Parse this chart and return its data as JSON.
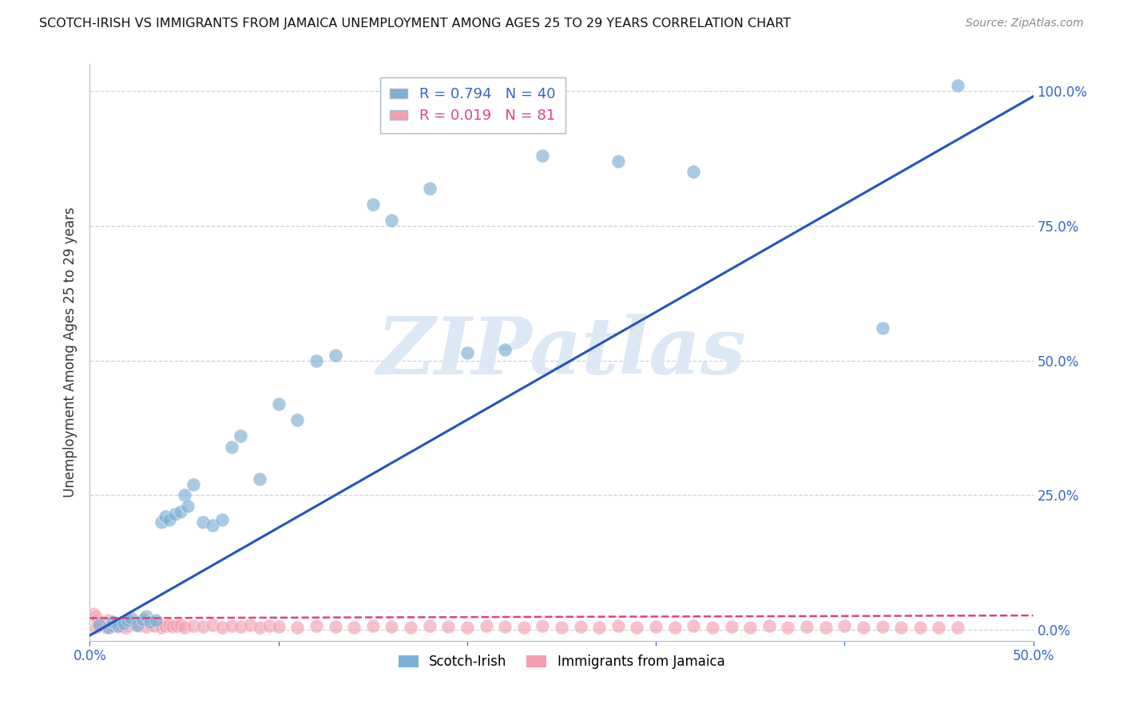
{
  "title": "SCOTCH-IRISH VS IMMIGRANTS FROM JAMAICA UNEMPLOYMENT AMONG AGES 25 TO 29 YEARS CORRELATION CHART",
  "source": "Source: ZipAtlas.com",
  "ylabel": "Unemployment Among Ages 25 to 29 years",
  "xlabel": "",
  "xmin": 0.0,
  "xmax": 0.5,
  "ymin": -0.02,
  "ymax": 1.05,
  "xticks": [
    0.0,
    0.1,
    0.2,
    0.3,
    0.4,
    0.5
  ],
  "ytick_vals": [
    0.0,
    0.25,
    0.5,
    0.75,
    1.0
  ],
  "ytick_labels_right": [
    "0.0%",
    "25.0%",
    "50.0%",
    "75.0%",
    "100.0%"
  ],
  "xtick_labels": [
    "0.0%",
    "",
    "",
    "",
    "",
    "50.0%"
  ],
  "scotch_irish_color": "#7ab0d4",
  "jamaica_color": "#f4a0b0",
  "scotch_irish_R": 0.794,
  "scotch_irish_N": 40,
  "jamaica_R": 0.019,
  "jamaica_N": 81,
  "regression_blue": "#2255bb",
  "regression_pink": "#dd4477",
  "watermark": "ZIPatlas",
  "watermark_color": "#dce8f5",
  "scotch_irish_x": [
    0.005,
    0.01,
    0.012,
    0.015,
    0.018,
    0.02,
    0.022,
    0.025,
    0.028,
    0.03,
    0.032,
    0.035,
    0.038,
    0.04,
    0.042,
    0.045,
    0.048,
    0.05,
    0.052,
    0.055,
    0.06,
    0.065,
    0.07,
    0.075,
    0.08,
    0.09,
    0.1,
    0.11,
    0.12,
    0.13,
    0.15,
    0.16,
    0.18,
    0.2,
    0.22,
    0.24,
    0.28,
    0.32,
    0.42,
    0.46
  ],
  "scotch_irish_y": [
    0.01,
    0.005,
    0.015,
    0.008,
    0.012,
    0.018,
    0.022,
    0.01,
    0.02,
    0.025,
    0.015,
    0.018,
    0.2,
    0.21,
    0.205,
    0.215,
    0.22,
    0.25,
    0.23,
    0.27,
    0.2,
    0.195,
    0.205,
    0.34,
    0.36,
    0.28,
    0.42,
    0.39,
    0.5,
    0.51,
    0.79,
    0.76,
    0.82,
    0.515,
    0.52,
    0.88,
    0.87,
    0.85,
    0.56,
    1.01
  ],
  "jamaica_x": [
    0.002,
    0.003,
    0.004,
    0.005,
    0.006,
    0.007,
    0.008,
    0.009,
    0.01,
    0.011,
    0.012,
    0.013,
    0.014,
    0.015,
    0.016,
    0.017,
    0.018,
    0.019,
    0.02,
    0.022,
    0.024,
    0.026,
    0.028,
    0.03,
    0.032,
    0.034,
    0.036,
    0.038,
    0.04,
    0.042,
    0.044,
    0.046,
    0.048,
    0.05,
    0.055,
    0.06,
    0.065,
    0.07,
    0.075,
    0.08,
    0.085,
    0.09,
    0.095,
    0.1,
    0.11,
    0.12,
    0.13,
    0.14,
    0.15,
    0.16,
    0.17,
    0.18,
    0.19,
    0.2,
    0.21,
    0.22,
    0.23,
    0.24,
    0.25,
    0.26,
    0.27,
    0.28,
    0.29,
    0.3,
    0.31,
    0.32,
    0.33,
    0.34,
    0.35,
    0.36,
    0.37,
    0.38,
    0.39,
    0.4,
    0.41,
    0.42,
    0.43,
    0.44,
    0.45,
    0.46,
    0.003
  ],
  "jamaica_y": [
    0.03,
    0.025,
    0.02,
    0.01,
    0.015,
    0.008,
    0.012,
    0.005,
    0.018,
    0.01,
    0.015,
    0.008,
    0.012,
    0.006,
    0.01,
    0.008,
    0.015,
    0.005,
    0.008,
    0.012,
    0.01,
    0.008,
    0.015,
    0.006,
    0.01,
    0.008,
    0.012,
    0.005,
    0.008,
    0.01,
    0.006,
    0.008,
    0.01,
    0.005,
    0.008,
    0.006,
    0.01,
    0.005,
    0.008,
    0.006,
    0.01,
    0.005,
    0.008,
    0.006,
    0.005,
    0.008,
    0.006,
    0.005,
    0.008,
    0.006,
    0.005,
    0.008,
    0.006,
    0.005,
    0.008,
    0.006,
    0.005,
    0.008,
    0.005,
    0.006,
    0.005,
    0.008,
    0.005,
    0.006,
    0.005,
    0.008,
    0.005,
    0.006,
    0.005,
    0.008,
    0.005,
    0.006,
    0.005,
    0.008,
    0.005,
    0.006,
    0.005,
    0.005,
    0.005,
    0.005,
    0.005
  ]
}
